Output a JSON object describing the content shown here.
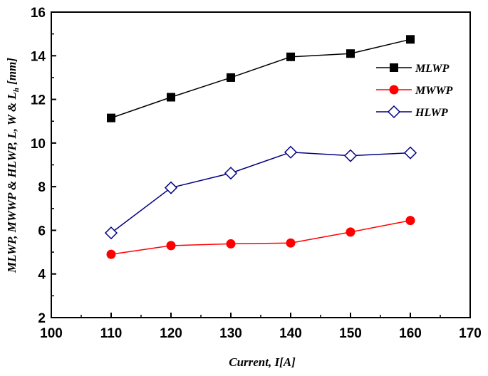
{
  "chart_data": {
    "type": "line",
    "title": "",
    "xlabel": "Current, I[A]",
    "ylabel_parts": [
      "MLWP, MWWP & HLWP, L, W & L",
      "h",
      " [mm]"
    ],
    "xlim": [
      100,
      170
    ],
    "ylim": [
      2,
      16
    ],
    "xticks": [
      100,
      110,
      120,
      130,
      140,
      150,
      160,
      170
    ],
    "yticks": [
      2,
      4,
      6,
      8,
      10,
      12,
      14,
      16
    ],
    "grid": false,
    "legend_position": "top-right",
    "x": [
      110,
      120,
      130,
      140,
      150,
      160
    ],
    "series": [
      {
        "name": "MLWP",
        "marker": "square",
        "color": "#000000",
        "values": [
          11.15,
          12.1,
          13.0,
          13.95,
          14.1,
          14.75
        ]
      },
      {
        "name": "MWWP",
        "marker": "circle",
        "color": "#ff0000",
        "values": [
          4.9,
          5.3,
          5.38,
          5.42,
          5.92,
          6.45
        ]
      },
      {
        "name": "HLWP",
        "marker": "diamond",
        "color": "#000080",
        "values": [
          5.88,
          7.95,
          8.62,
          9.58,
          9.42,
          9.55
        ]
      }
    ]
  }
}
